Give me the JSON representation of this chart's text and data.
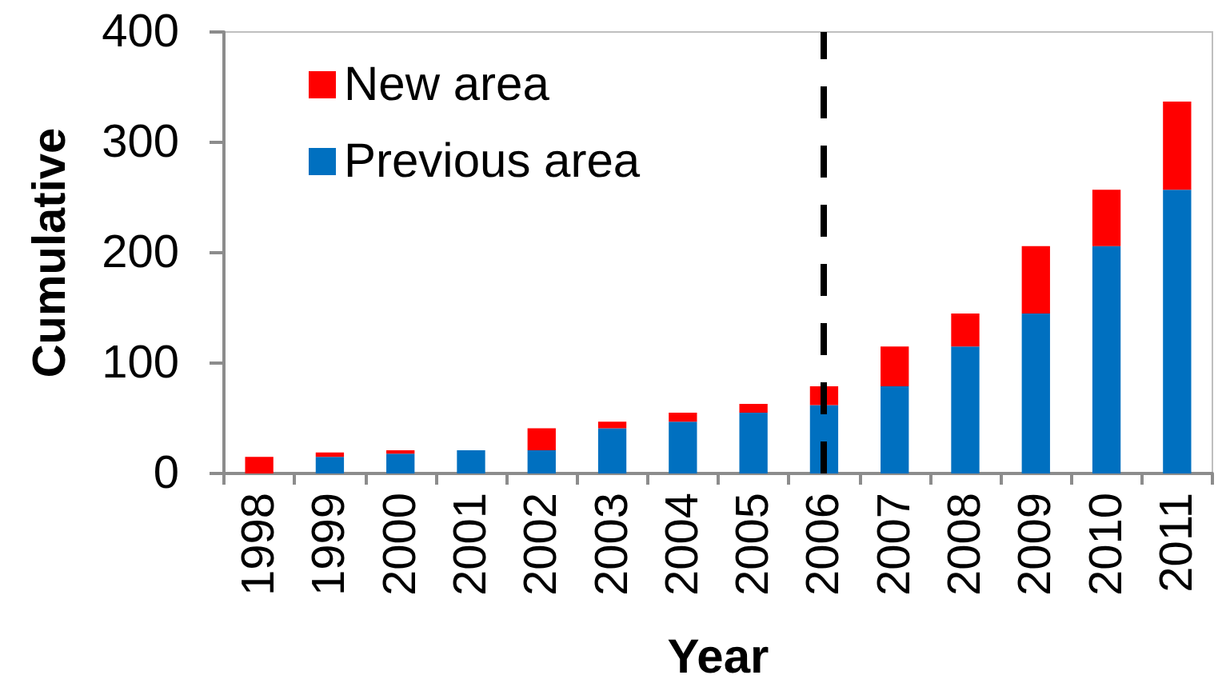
{
  "chart_data": {
    "type": "bar",
    "stacked": true,
    "xlabel": "Year",
    "ylabel": "Cumulative",
    "categories": [
      "1998",
      "1999",
      "2000",
      "2001",
      "2002",
      "2003",
      "2004",
      "2005",
      "2006",
      "2007",
      "2008",
      "2009",
      "2010",
      "2011"
    ],
    "series": [
      {
        "name": "Previous area",
        "color": "#0070c0",
        "values": [
          0,
          15,
          18,
          21,
          21,
          41,
          47,
          55,
          62,
          79,
          115,
          145,
          206,
          257
        ]
      },
      {
        "name": "New area",
        "color": "#ff0000",
        "values": [
          15,
          4,
          3,
          0,
          20,
          6,
          8,
          8,
          17,
          36,
          30,
          61,
          51,
          80
        ]
      }
    ],
    "ylim": [
      0,
      400
    ],
    "yticks": [
      0,
      100,
      200,
      300,
      400
    ],
    "grid": false,
    "legend": "top left",
    "ref_lines": [
      {
        "axis": "x",
        "value": "2006",
        "color": "#000000",
        "line_style": "dashed"
      }
    ]
  }
}
